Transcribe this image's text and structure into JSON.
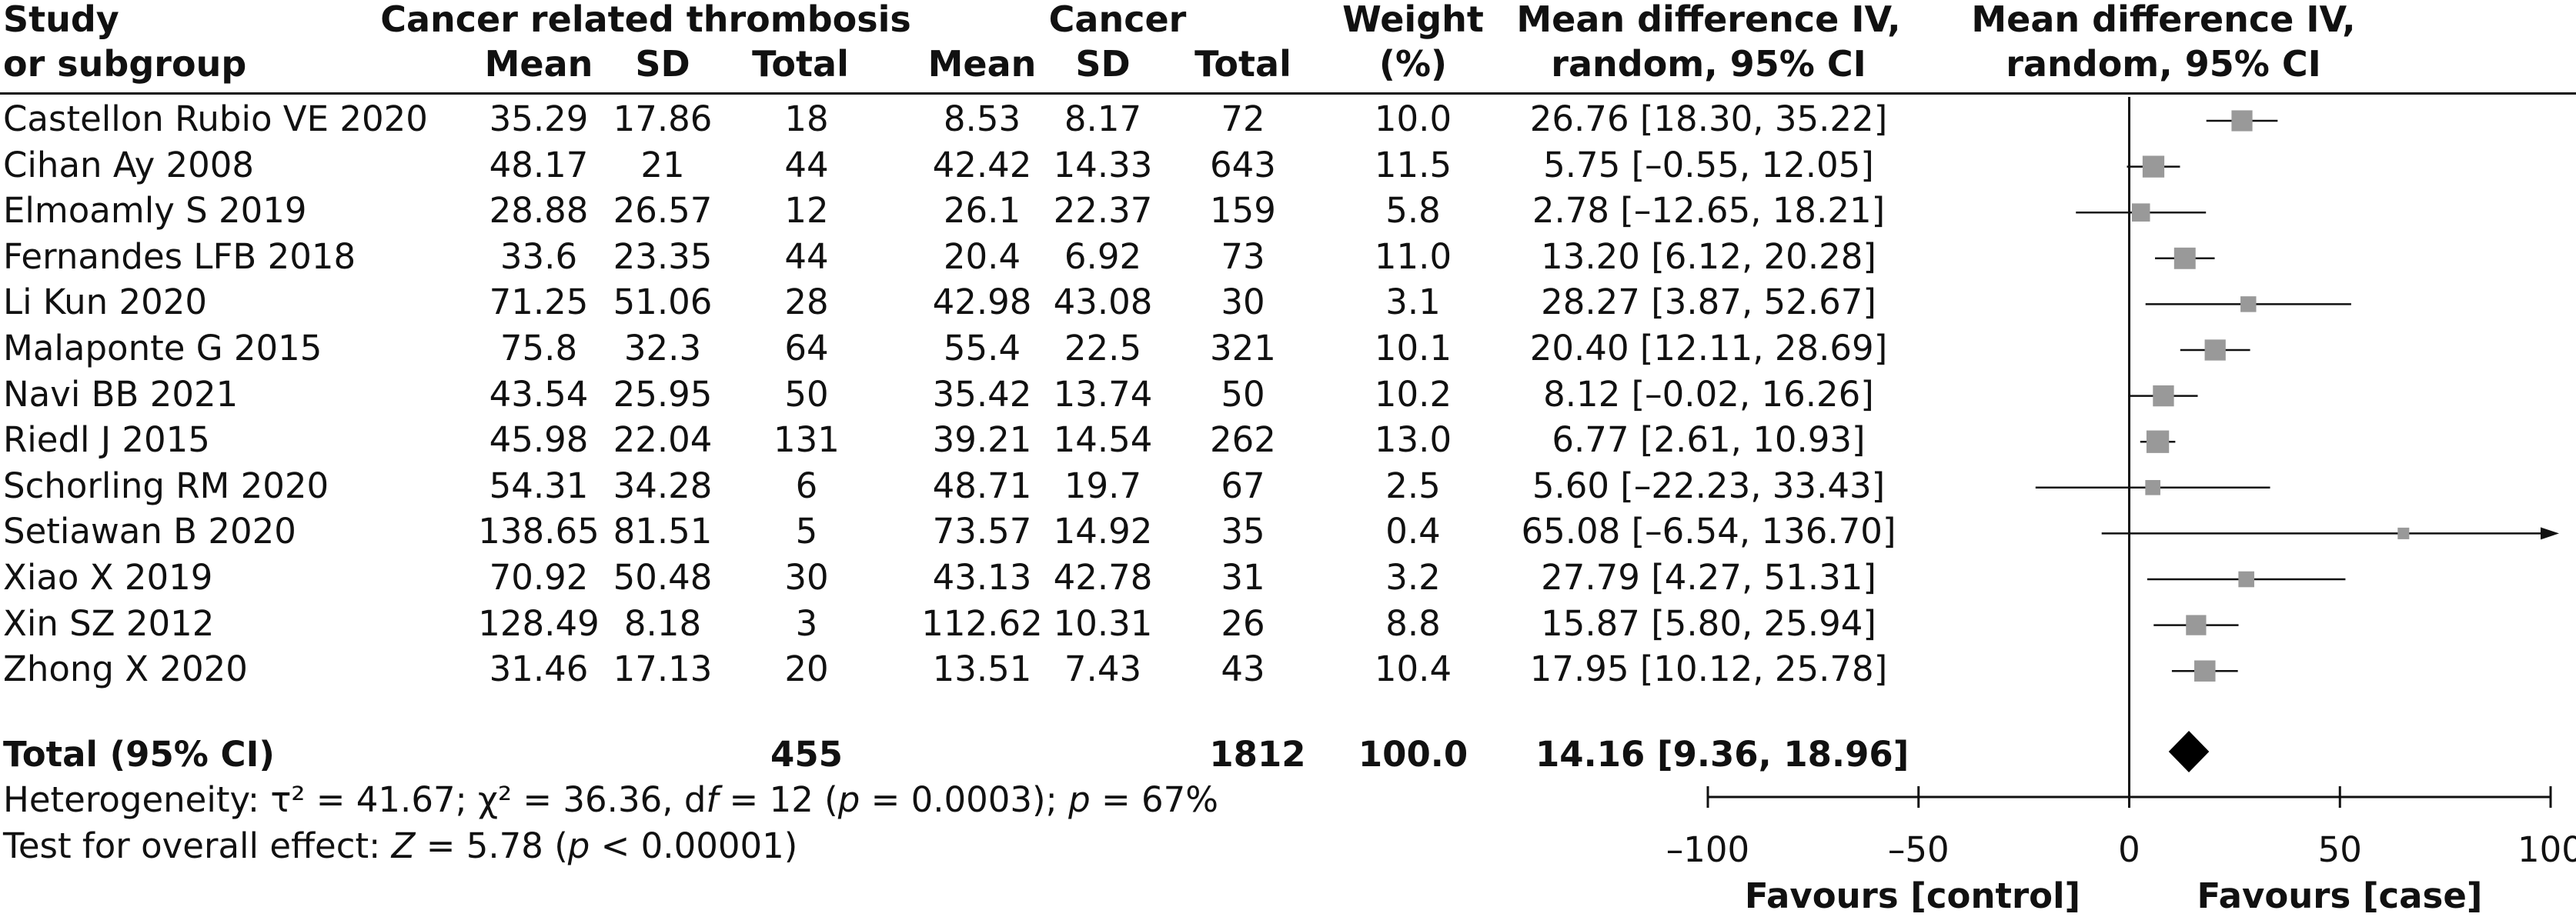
{
  "header": {
    "study_1": "Study",
    "study_2": "or subgroup",
    "group1": "Cancer related thrombosis",
    "group2": "Cancer",
    "mean": "Mean",
    "sd": "SD",
    "total": "Total",
    "weight_1": "Weight",
    "weight_2": "(%)",
    "md_1": "Mean difference IV,",
    "md_2": "random, 95% CI",
    "plot_1": "Mean difference IV,",
    "plot_2": "random, 95% CI"
  },
  "rows": [
    {
      "study": "Castellon Rubio VE 2020",
      "m1": "35.29",
      "sd1": "17.86",
      "n1": "18",
      "m2": "8.53",
      "sd2": "8.17",
      "n2": "72",
      "weight": "10.0",
      "ci": "26.76 [18.30, 35.22]"
    },
    {
      "study": "Cihan Ay 2008",
      "m1": "48.17",
      "sd1": "21",
      "n1": "44",
      "m2": "42.42",
      "sd2": "14.33",
      "n2": "643",
      "weight": "11.5",
      "ci": "5.75 [–0.55, 12.05]"
    },
    {
      "study": "Elmoamly S 2019",
      "m1": "28.88",
      "sd1": "26.57",
      "n1": "12",
      "m2": "26.1",
      "sd2": "22.37",
      "n2": "159",
      "weight": "5.8",
      "ci": "2.78 [–12.65, 18.21]"
    },
    {
      "study": "Fernandes LFB 2018",
      "m1": "33.6",
      "sd1": "23.35",
      "n1": "44",
      "m2": "20.4",
      "sd2": "6.92",
      "n2": "73",
      "weight": "11.0",
      "ci": "13.20 [6.12, 20.28]"
    },
    {
      "study": "Li Kun 2020",
      "m1": "71.25",
      "sd1": "51.06",
      "n1": "28",
      "m2": "42.98",
      "sd2": "43.08",
      "n2": "30",
      "weight": "3.1",
      "ci": "28.27 [3.87, 52.67]"
    },
    {
      "study": "Malaponte G 2015",
      "m1": "75.8",
      "sd1": "32.3",
      "n1": "64",
      "m2": "55.4",
      "sd2": "22.5",
      "n2": "321",
      "weight": "10.1",
      "ci": "20.40 [12.11, 28.69]"
    },
    {
      "study": "Navi BB 2021",
      "m1": "43.54",
      "sd1": "25.95",
      "n1": "50",
      "m2": "35.42",
      "sd2": "13.74",
      "n2": "50",
      "weight": "10.2",
      "ci": "8.12 [–0.02, 16.26]"
    },
    {
      "study": "Riedl J 2015",
      "m1": "45.98",
      "sd1": "22.04",
      "n1": "131",
      "m2": "39.21",
      "sd2": "14.54",
      "n2": "262",
      "weight": "13.0",
      "ci": "6.77 [2.61, 10.93]"
    },
    {
      "study": "Schorling RM 2020",
      "m1": "54.31",
      "sd1": "34.28",
      "n1": "6",
      "m2": "48.71",
      "sd2": "19.7",
      "n2": "67",
      "weight": "2.5",
      "ci": "5.60 [–22.23, 33.43]"
    },
    {
      "study": "Setiawan B 2020",
      "m1": "138.65",
      "sd1": "81.51",
      "n1": "5",
      "m2": "73.57",
      "sd2": "14.92",
      "n2": "35",
      "weight": "0.4",
      "ci": "65.08 [–6.54, 136.70]"
    },
    {
      "study": "Xiao X 2019",
      "m1": "70.92",
      "sd1": "50.48",
      "n1": "30",
      "m2": "43.13",
      "sd2": "42.78",
      "n2": "31",
      "weight": "3.2",
      "ci": "27.79 [4.27, 51.31]"
    },
    {
      "study": "Xin SZ 2012",
      "m1": "128.49",
      "sd1": "8.18",
      "n1": "3",
      "m2": "112.62",
      "sd2": "10.31",
      "n2": "26",
      "weight": "8.8",
      "ci": "15.87 [5.80, 25.94]"
    },
    {
      "study": "Zhong X 2020",
      "m1": "31.46",
      "sd1": "17.13",
      "n1": "20",
      "m2": "13.51",
      "sd2": "7.43",
      "n2": "43",
      "weight": "10.4",
      "ci": "17.95 [10.12, 25.78]"
    }
  ],
  "total": {
    "label": "Total (95% CI)",
    "n1": "455",
    "n2": "1812",
    "weight": "100.0",
    "ci": "14.16 [9.36, 18.96]"
  },
  "footer": {
    "het_prefix": "Heterogeneity: τ² = 41.67; χ² = 36.36, d",
    "het_df": "f",
    "het_mid": " = 12 (",
    "het_p": "p",
    "het_mid2": " = 0.0003); ",
    "het_i": "p",
    "het_end": " = 67%",
    "test_prefix": "Test for overall effect: ",
    "test_z": "Z",
    "test_mid": " = 5.78 (",
    "test_p": "p",
    "test_end": " < 0.00001)"
  },
  "axis": {
    "favours_left": "Favours [control]",
    "favours_right": "Favours [case]",
    "ticks": [
      "–100",
      "–50",
      "0",
      "50",
      "100"
    ]
  },
  "chart_data": {
    "type": "forest",
    "xlim": [
      -100,
      100
    ],
    "tick_values": [
      -100,
      -50,
      0,
      50,
      100
    ],
    "studies": [
      {
        "md": 26.76,
        "lo": 18.3,
        "hi": 35.22,
        "weight": 10.0
      },
      {
        "md": 5.75,
        "lo": -0.55,
        "hi": 12.05,
        "weight": 11.5
      },
      {
        "md": 2.78,
        "lo": -12.65,
        "hi": 18.21,
        "weight": 5.8
      },
      {
        "md": 13.2,
        "lo": 6.12,
        "hi": 20.28,
        "weight": 11.0
      },
      {
        "md": 28.27,
        "lo": 3.87,
        "hi": 52.67,
        "weight": 3.1
      },
      {
        "md": 20.4,
        "lo": 12.11,
        "hi": 28.69,
        "weight": 10.1
      },
      {
        "md": 8.12,
        "lo": -0.02,
        "hi": 16.26,
        "weight": 10.2
      },
      {
        "md": 6.77,
        "lo": 2.61,
        "hi": 10.93,
        "weight": 13.0
      },
      {
        "md": 5.6,
        "lo": -22.23,
        "hi": 33.43,
        "weight": 2.5
      },
      {
        "md": 65.08,
        "lo": -6.54,
        "hi": 136.7,
        "weight": 0.4
      },
      {
        "md": 27.79,
        "lo": 4.27,
        "hi": 51.31,
        "weight": 3.2
      },
      {
        "md": 15.87,
        "lo": 5.8,
        "hi": 25.94,
        "weight": 8.8
      },
      {
        "md": 17.95,
        "lo": 10.12,
        "hi": 25.78,
        "weight": 10.4
      }
    ],
    "pooled": {
      "md": 14.16,
      "lo": 9.36,
      "hi": 18.96
    },
    "colors": {
      "square": "#999999",
      "line": "#111111",
      "diamond": "#000000"
    }
  }
}
